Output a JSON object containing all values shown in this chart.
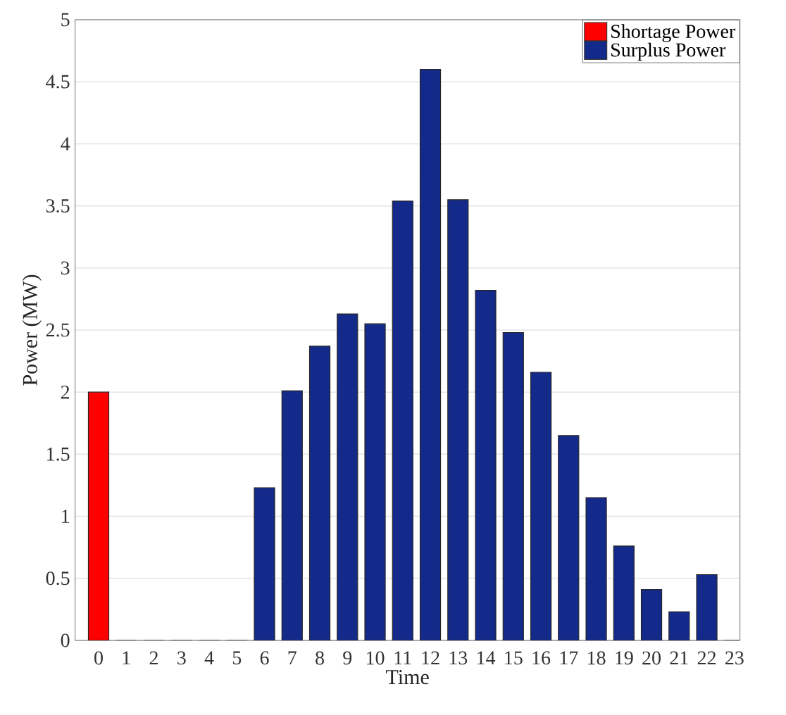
{
  "chart_data": {
    "type": "bar",
    "xlabel": "Time",
    "ylabel": "Power (MW)",
    "categories": [
      "0",
      "1",
      "2",
      "3",
      "4",
      "5",
      "6",
      "7",
      "8",
      "9",
      "10",
      "11",
      "12",
      "13",
      "14",
      "15",
      "16",
      "17",
      "18",
      "19",
      "20",
      "21",
      "22",
      "23"
    ],
    "series": [
      {
        "name": "Shortage Power",
        "color": "#ff0000",
        "values": [
          2.0,
          null,
          null,
          null,
          null,
          null,
          null,
          null,
          null,
          null,
          null,
          null,
          null,
          null,
          null,
          null,
          null,
          null,
          null,
          null,
          null,
          null,
          null,
          null
        ]
      },
      {
        "name": "Surplus Power",
        "color": "#142a8a",
        "values": [
          null,
          0,
          0,
          0,
          0,
          0,
          1.23,
          2.01,
          2.37,
          2.63,
          2.55,
          3.54,
          4.6,
          3.55,
          2.82,
          2.48,
          2.16,
          1.65,
          1.15,
          0.76,
          0.41,
          0.23,
          0.53,
          0
        ]
      }
    ],
    "ylim": [
      0,
      5
    ],
    "yticks": [
      0,
      0.5,
      1,
      1.5,
      2,
      2.5,
      3,
      3.5,
      4,
      4.5,
      5
    ],
    "grid": "y",
    "legend": "top right"
  }
}
